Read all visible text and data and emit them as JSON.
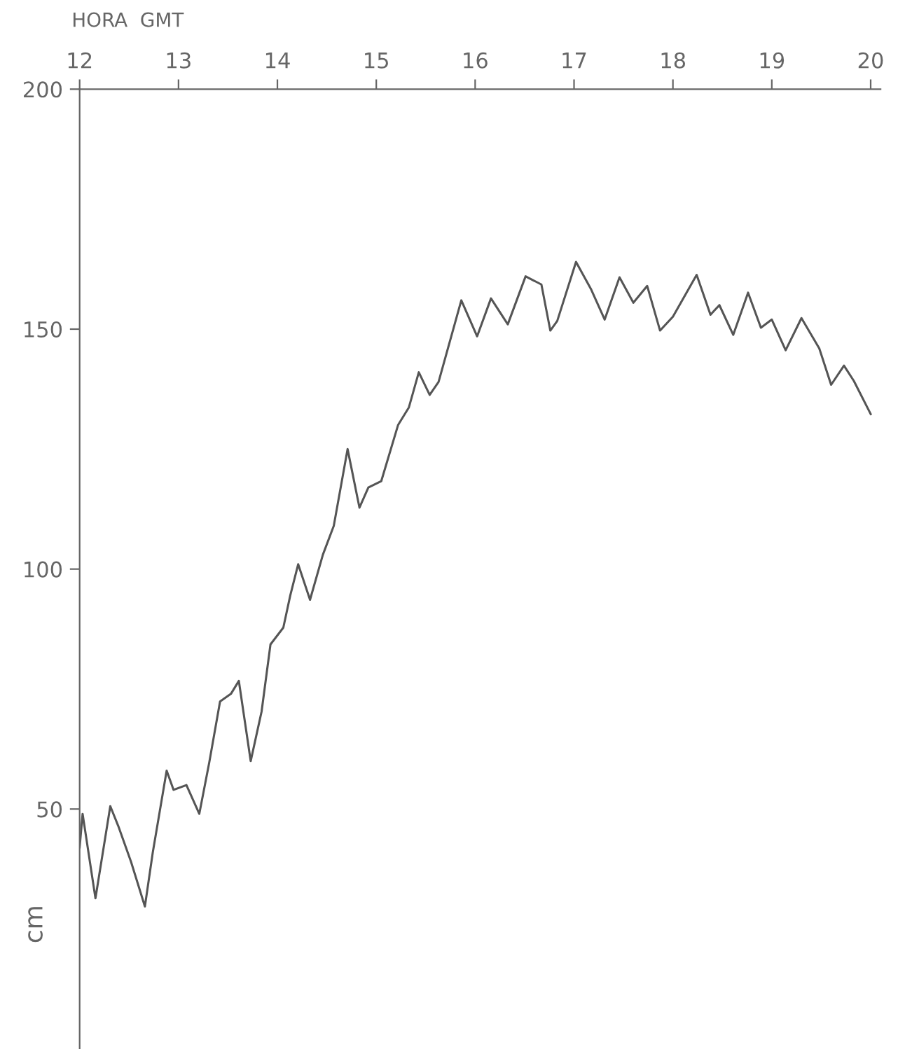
{
  "chart_data": {
    "type": "line",
    "xlabel": "HORA  GMT",
    "ylabel": "cm",
    "x": [
      12.0,
      12.03,
      12.16,
      12.31,
      12.39,
      12.52,
      12.66,
      12.74,
      12.88,
      12.95,
      13.08,
      13.21,
      13.31,
      13.42,
      13.53,
      13.61,
      13.73,
      13.84,
      13.93,
      14.06,
      14.13,
      14.21,
      14.33,
      14.46,
      14.57,
      14.71,
      14.83,
      14.92,
      15.05,
      15.22,
      15.33,
      15.43,
      15.54,
      15.63,
      15.86,
      16.02,
      16.16,
      16.33,
      16.51,
      16.67,
      16.76,
      16.83,
      17.02,
      17.17,
      17.31,
      17.46,
      17.6,
      17.74,
      17.87,
      18.0,
      18.24,
      18.38,
      18.47,
      18.61,
      18.76,
      18.89,
      19.0,
      19.14,
      19.3,
      19.48,
      19.6,
      19.73,
      19.83,
      20.0
    ],
    "series": [
      {
        "color": "#555555",
        "values": [
          42,
          49,
          31.4,
          50.6,
          46.5,
          39,
          29.7,
          41,
          58,
          54,
          55,
          49,
          59.6,
          72.4,
          74,
          76.7,
          60,
          70.3,
          84.3,
          87.8,
          94.5,
          101,
          93.6,
          103,
          109,
          125,
          112.8,
          117,
          118.3,
          130,
          133.7,
          141,
          136.3,
          139,
          156,
          148.5,
          156.4,
          151,
          161,
          159.3,
          149.7,
          151.7,
          164,
          158.4,
          152,
          160.8,
          155.5,
          159,
          149.7,
          152.6,
          161.3,
          153,
          155,
          148.8,
          157.6,
          150.3,
          152,
          145.6,
          152.3,
          146,
          138.4,
          142.4,
          139.2,
          132.3
        ]
      }
    ],
    "xlim": [
      12,
      20.1
    ],
    "xticks": [
      12,
      13,
      14,
      15,
      16,
      17,
      18,
      19,
      20
    ],
    "ylim": [
      0,
      200
    ],
    "yticks": [
      50,
      100,
      150,
      200
    ],
    "grid": false,
    "legend": false,
    "marker": "none",
    "line_style": "solid"
  }
}
